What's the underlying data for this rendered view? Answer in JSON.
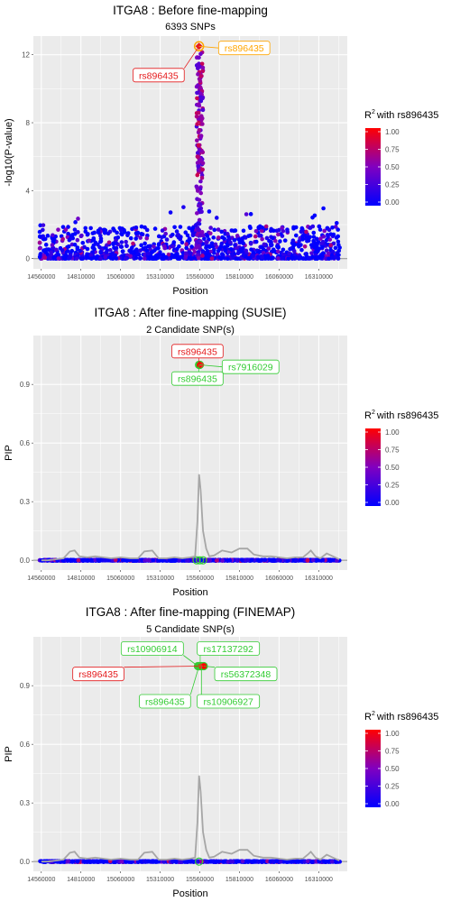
{
  "colors": {
    "panel_bg": "#ebebeb",
    "grid_major": "#ffffff",
    "baseline": "#888888",
    "pip_curve": "#a6a6a6",
    "lead_label": "#e41a1c",
    "sig_label": "#ffa500",
    "cs_label": "#33cc33",
    "gradient": [
      "#0000ff",
      "#8000c0",
      "#ff0000"
    ]
  },
  "chart_data": [
    {
      "id": "before",
      "type": "scatter",
      "title": "ITGA8 : Before fine-mapping",
      "subtitle": "6393 SNPs",
      "xlabel": "Position",
      "ylabel": "-log10(P-value)",
      "xlim": [
        14510000,
        16490000
      ],
      "ylim": [
        -0.6,
        13.1
      ],
      "xticks": [
        14560000,
        14810000,
        15060000,
        15310000,
        15560000,
        15810000,
        16060000,
        16310000
      ],
      "xtick_labels": [
        "14560000",
        "14810000",
        "15060000",
        "15310000",
        "15560000",
        "15810000",
        "16060000",
        "16310000"
      ],
      "yticks": [
        0,
        4,
        8,
        12
      ],
      "ytick_labels": [
        "0",
        "4",
        "8",
        "12"
      ],
      "grid": true,
      "lead_snp": {
        "x": 15555000,
        "y": 12.5
      },
      "labels": [
        {
          "text": "rs896435",
          "kind": "lead",
          "x": 15555000,
          "y": 12.5,
          "box_x": 15300000,
          "box_y": 10.8
        },
        {
          "text": "rs896435",
          "kind": "sig",
          "x": 15555000,
          "y": 12.5,
          "box_x": 15840000,
          "box_y": 12.4
        }
      ],
      "legend": {
        "title": "with rs896435",
        "title_prefix": "R",
        "title_sup": "2",
        "ticks": [
          "1.00",
          "0.75",
          "0.50",
          "0.25",
          "0.00"
        ],
        "position": "right"
      }
    },
    {
      "id": "susie",
      "type": "scatter",
      "title": "ITGA8 : After fine-mapping (SUSIE)",
      "subtitle": "2 Candidate SNP(s)",
      "xlabel": "Position",
      "ylabel": "PIP",
      "xlim": [
        14510000,
        16490000
      ],
      "ylim": [
        -0.05,
        1.15
      ],
      "xticks": [
        14560000,
        14810000,
        15060000,
        15310000,
        15560000,
        15810000,
        16060000,
        16310000
      ],
      "xtick_labels": [
        "14560000",
        "14810000",
        "15060000",
        "15310000",
        "15560000",
        "15810000",
        "16060000",
        "16310000"
      ],
      "yticks": [
        0.0,
        0.3,
        0.6,
        0.9
      ],
      "ytick_labels": [
        "0.0",
        "0.3",
        "0.6",
        "0.9"
      ],
      "grid": true,
      "pip_curve": {
        "x": [
          14560000,
          14600000,
          14650000,
          14700000,
          14740000,
          14770000,
          14800000,
          14850000,
          14900000,
          14950000,
          15000000,
          15060000,
          15120000,
          15170000,
          15210000,
          15260000,
          15300000,
          15350000,
          15400000,
          15450000,
          15500000,
          15530000,
          15545000,
          15555000,
          15565000,
          15580000,
          15600000,
          15620000,
          15650000,
          15700000,
          15760000,
          15810000,
          15860000,
          15900000,
          15960000,
          16010000,
          16060000,
          16110000,
          16160000,
          16210000,
          16240000,
          16260000,
          16290000,
          16320000,
          16360000,
          16400000,
          16440000
        ],
        "y": [
          0.0,
          0.0,
          0.005,
          0.01,
          0.045,
          0.05,
          0.02,
          0.015,
          0.02,
          0.015,
          0.01,
          0.015,
          0.01,
          0.01,
          0.045,
          0.05,
          0.01,
          0.01,
          0.015,
          0.01,
          0.015,
          0.02,
          0.2,
          0.44,
          0.36,
          0.15,
          0.06,
          0.02,
          0.025,
          0.05,
          0.04,
          0.06,
          0.06,
          0.03,
          0.02,
          0.02,
          0.015,
          0.01,
          0.015,
          0.015,
          0.035,
          0.05,
          0.02,
          0.01,
          0.035,
          0.02,
          0.005
        ]
      },
      "candidates": [
        {
          "x": 15555000,
          "y": 1.0
        },
        {
          "x": 15560000,
          "y": 1.0
        }
      ],
      "baseline_candidates": [
        15540000,
        15560000,
        15580000
      ],
      "labels": [
        {
          "text": "rs896435",
          "kind": "lead",
          "x": 15555000,
          "y": 1.0,
          "box_x": 15545000,
          "box_y": 1.07
        },
        {
          "text": "rs7916029",
          "kind": "cs",
          "x": 15560000,
          "y": 1.0,
          "box_x": 15880000,
          "box_y": 0.99
        },
        {
          "text": "rs896435",
          "kind": "cs",
          "x": 15555000,
          "y": 1.0,
          "box_x": 15545000,
          "box_y": 0.93
        }
      ],
      "legend": {
        "title": "with rs896435",
        "title_prefix": "R",
        "title_sup": "2",
        "ticks": [
          "1.00",
          "0.75",
          "0.50",
          "0.25",
          "0.00"
        ],
        "position": "right"
      }
    },
    {
      "id": "finemap",
      "type": "scatter",
      "title": "ITGA8 : After fine-mapping (FINEMAP)",
      "subtitle": "5 Candidate SNP(s)",
      "xlabel": "Position",
      "ylabel": "PIP",
      "xlim": [
        14510000,
        16490000
      ],
      "ylim": [
        -0.05,
        1.15
      ],
      "xticks": [
        14560000,
        14810000,
        15060000,
        15310000,
        15560000,
        15810000,
        16060000,
        16310000
      ],
      "xtick_labels": [
        "14560000",
        "14810000",
        "15060000",
        "15310000",
        "15560000",
        "15810000",
        "16060000",
        "16310000"
      ],
      "yticks": [
        0.0,
        0.3,
        0.6,
        0.9
      ],
      "ytick_labels": [
        "0.0",
        "0.3",
        "0.6",
        "0.9"
      ],
      "grid": true,
      "pip_curve": {
        "x": [
          14560000,
          14600000,
          14650000,
          14700000,
          14740000,
          14770000,
          14800000,
          14850000,
          14900000,
          14950000,
          15000000,
          15060000,
          15120000,
          15170000,
          15210000,
          15260000,
          15300000,
          15350000,
          15400000,
          15450000,
          15500000,
          15530000,
          15545000,
          15555000,
          15565000,
          15580000,
          15600000,
          15620000,
          15650000,
          15700000,
          15760000,
          15810000,
          15860000,
          15900000,
          15960000,
          16010000,
          16060000,
          16110000,
          16160000,
          16210000,
          16240000,
          16260000,
          16290000,
          16320000,
          16360000,
          16400000,
          16440000
        ],
        "y": [
          0.0,
          0.0,
          0.005,
          0.01,
          0.045,
          0.05,
          0.02,
          0.015,
          0.02,
          0.015,
          0.01,
          0.015,
          0.01,
          0.01,
          0.045,
          0.05,
          0.01,
          0.01,
          0.015,
          0.01,
          0.015,
          0.02,
          0.2,
          0.44,
          0.36,
          0.15,
          0.06,
          0.02,
          0.025,
          0.05,
          0.04,
          0.06,
          0.06,
          0.03,
          0.02,
          0.02,
          0.015,
          0.01,
          0.015,
          0.015,
          0.035,
          0.05,
          0.02,
          0.01,
          0.035,
          0.02,
          0.005
        ]
      },
      "candidates": [
        {
          "x": 15548000,
          "y": 1.0
        },
        {
          "x": 15555000,
          "y": 1.0
        },
        {
          "x": 15562000,
          "y": 1.0
        },
        {
          "x": 15570000,
          "y": 1.0
        },
        {
          "x": 15585000,
          "y": 1.0
        }
      ],
      "baseline_candidates": [
        15555000
      ],
      "labels": [
        {
          "text": "rs10906914",
          "kind": "cs",
          "x": 15548000,
          "y": 1.0,
          "box_x": 15260000,
          "box_y": 1.09
        },
        {
          "text": "rs17137292",
          "kind": "cs",
          "x": 15562000,
          "y": 1.0,
          "box_x": 15740000,
          "box_y": 1.09
        },
        {
          "text": "rs896435",
          "kind": "lead",
          "x": 15555000,
          "y": 1.0,
          "box_x": 14920000,
          "box_y": 0.96
        },
        {
          "text": "rs56372348",
          "kind": "cs",
          "x": 15585000,
          "y": 1.0,
          "box_x": 15850000,
          "box_y": 0.96
        },
        {
          "text": "rs896435",
          "kind": "cs",
          "x": 15555000,
          "y": 1.0,
          "box_x": 15340000,
          "box_y": 0.82
        },
        {
          "text": "rs10906927",
          "kind": "cs",
          "x": 15570000,
          "y": 1.0,
          "box_x": 15740000,
          "box_y": 0.82
        }
      ],
      "legend": {
        "title": "with rs896435",
        "title_prefix": "R",
        "title_sup": "2",
        "ticks": [
          "1.00",
          "0.75",
          "0.50",
          "0.25",
          "0.00"
        ],
        "position": "right"
      }
    }
  ]
}
